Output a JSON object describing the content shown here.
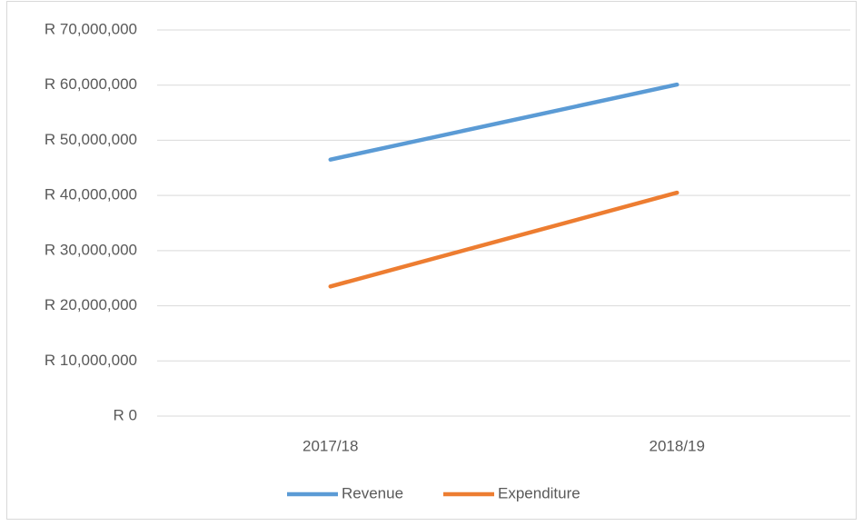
{
  "chart_data": {
    "type": "line",
    "categories": [
      "2017/18",
      "2018/19"
    ],
    "series": [
      {
        "name": "Revenue",
        "color": "#5b9bd5",
        "values": [
          46500000,
          60100000
        ]
      },
      {
        "name": "Expenditure",
        "color": "#ed7d31",
        "values": [
          23500000,
          40500000
        ]
      }
    ],
    "ylim": [
      0,
      70000000
    ],
    "yticks": [
      {
        "value": 0,
        "label": "R 0"
      },
      {
        "value": 10000000,
        "label": "R 10,000,000"
      },
      {
        "value": 20000000,
        "label": "R 20,000,000"
      },
      {
        "value": 30000000,
        "label": "R 30,000,000"
      },
      {
        "value": 40000000,
        "label": "R 40,000,000"
      },
      {
        "value": 50000000,
        "label": "R 50,000,000"
      },
      {
        "value": 60000000,
        "label": "R 60,000,000"
      },
      {
        "value": 70000000,
        "label": "R 70,000,000"
      }
    ],
    "grid": true,
    "legend": "bottom"
  }
}
